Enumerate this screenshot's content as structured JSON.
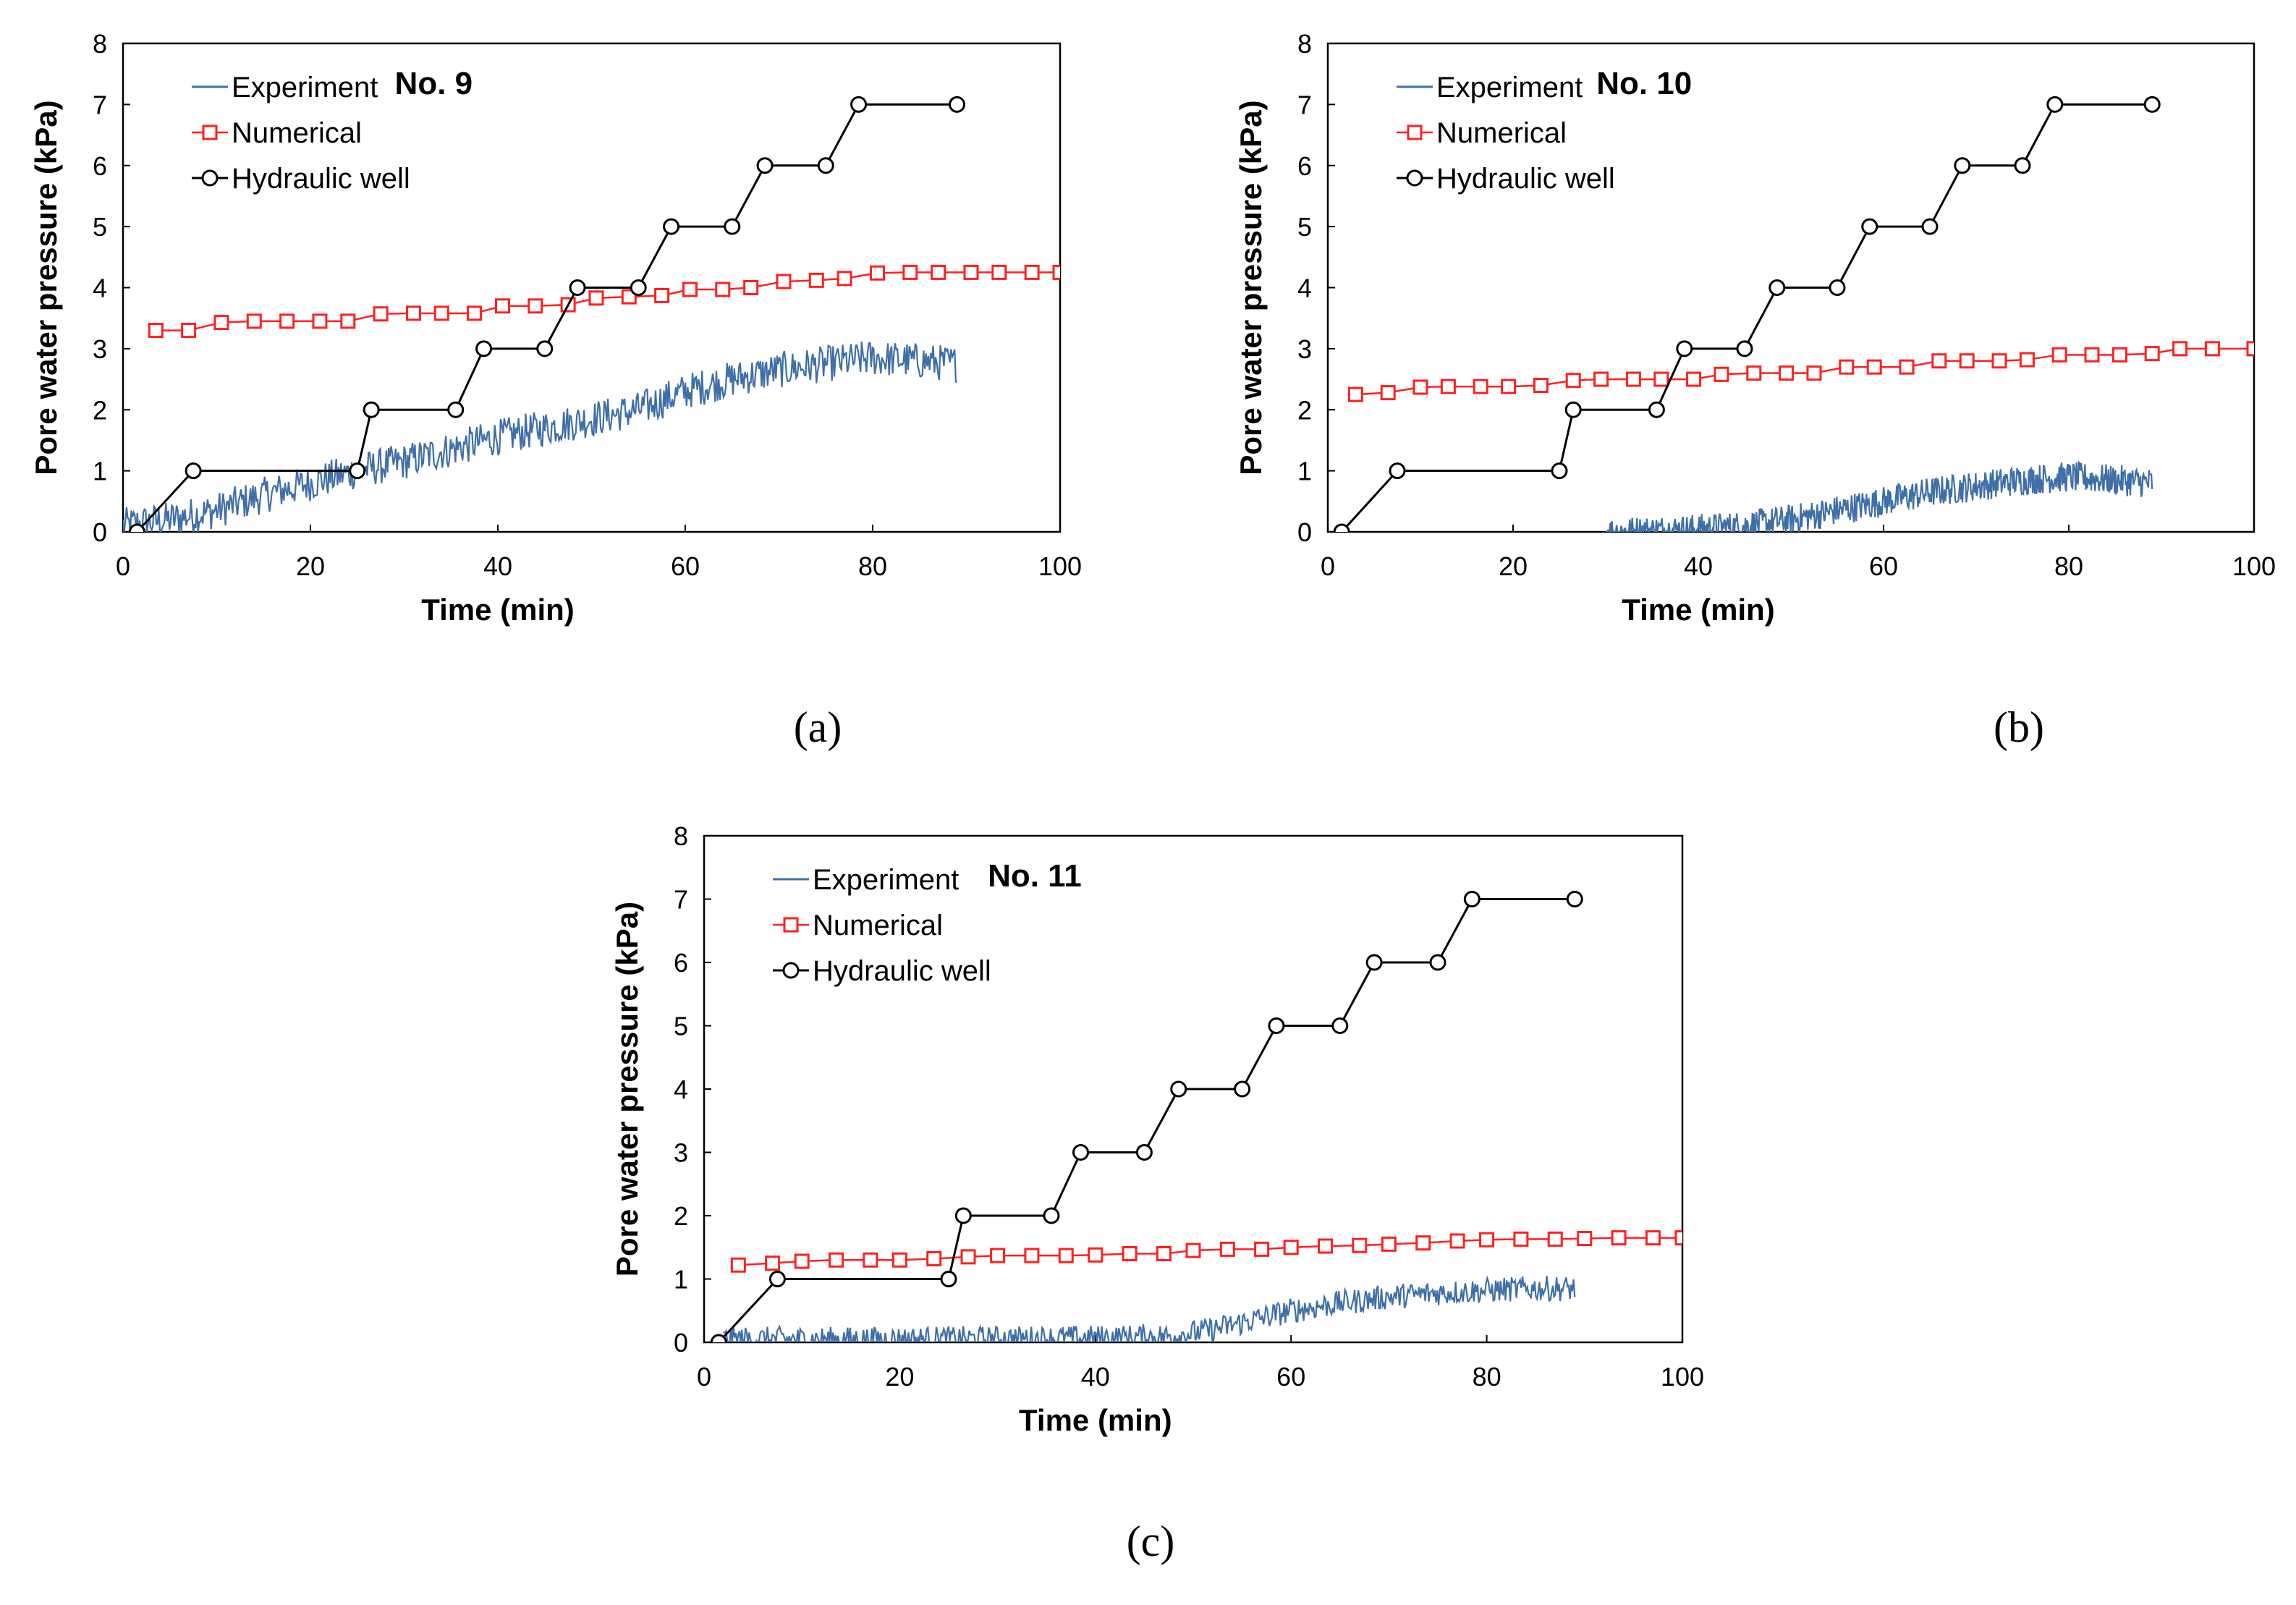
{
  "chart_data": [
    {
      "type": "line",
      "panel_label": "(a)",
      "title": "No. 9",
      "xlabel": "Time (min)",
      "ylabel": "Pore water pressure (kPa)",
      "xlim": [
        0,
        100
      ],
      "ylim": [
        0,
        8
      ],
      "x_ticks": [
        "0",
        "20",
        "40",
        "60",
        "80",
        "100"
      ],
      "y_ticks": [
        "0",
        "1",
        "2",
        "3",
        "4",
        "5",
        "6",
        "7",
        "8"
      ],
      "legend": [
        "Experiment",
        "Numerical",
        "Hydraulic well"
      ],
      "colors": {
        "experiment": "#3f6fa8",
        "numerical": "#ff2020",
        "hydraulic": "#000000"
      },
      "series": [
        {
          "name": "Experiment",
          "style": "noisy-line",
          "x": [
            0,
            5,
            10,
            15,
            20,
            25,
            30,
            35,
            40,
            45,
            50,
            55,
            60,
            65,
            70,
            75,
            80,
            85,
            89
          ],
          "y": [
            0.1,
            0.2,
            0.35,
            0.6,
            0.8,
            1.0,
            1.15,
            1.35,
            1.55,
            1.7,
            1.85,
            2.0,
            2.3,
            2.5,
            2.65,
            2.75,
            2.85,
            2.8,
            2.75
          ],
          "noise": 0.3
        },
        {
          "name": "Numerical",
          "style": "square-markers",
          "x": [
            3.5,
            7,
            10.5,
            14,
            17.5,
            21,
            24,
            27.5,
            31,
            34,
            37.5,
            40.5,
            44,
            47.5,
            50.5,
            54,
            57.5,
            60.5,
            64,
            67,
            70.5,
            74,
            77,
            80.5,
            84,
            87,
            90.5,
            93.5,
            97,
            100
          ],
          "y": [
            3.3,
            3.3,
            3.43,
            3.45,
            3.45,
            3.45,
            3.45,
            3.57,
            3.58,
            3.58,
            3.58,
            3.7,
            3.7,
            3.72,
            3.83,
            3.85,
            3.87,
            3.97,
            3.97,
            4.0,
            4.1,
            4.12,
            4.15,
            4.24,
            4.25,
            4.25,
            4.25,
            4.25,
            4.25,
            4.25
          ]
        },
        {
          "name": "Hydraulic well",
          "style": "circle-markers",
          "x": [
            1.5,
            7.5,
            25,
            26.5,
            35.5,
            38.5,
            45,
            48.5,
            55,
            58.5,
            65,
            68.5,
            75,
            78.5,
            89
          ],
          "y": [
            0,
            1,
            1,
            2,
            2,
            3,
            3,
            4,
            4,
            5,
            5,
            6,
            6,
            7,
            7
          ]
        }
      ]
    },
    {
      "type": "line",
      "panel_label": "(b)",
      "title": "No. 10",
      "xlabel": "Time (min)",
      "ylabel": "Pore water pressure (kPa)",
      "xlim": [
        0,
        100
      ],
      "ylim": [
        0,
        8
      ],
      "x_ticks": [
        "0",
        "20",
        "40",
        "60",
        "80",
        "100"
      ],
      "y_ticks": [
        "0",
        "1",
        "2",
        "3",
        "4",
        "5",
        "6",
        "7",
        "8"
      ],
      "legend": [
        "Experiment",
        "Numerical",
        "Hydraulic well"
      ],
      "colors": {
        "experiment": "#3f6fa8",
        "numerical": "#ff2020",
        "hydraulic": "#000000"
      },
      "series": [
        {
          "name": "Experiment",
          "style": "noisy-line",
          "x": [
            30,
            35,
            40,
            45,
            50,
            55,
            60,
            65,
            70,
            75,
            80,
            85,
            89
          ],
          "y": [
            0,
            0.02,
            0.05,
            0.1,
            0.2,
            0.35,
            0.5,
            0.65,
            0.75,
            0.85,
            0.9,
            0.85,
            0.8
          ],
          "noise": 0.25
        },
        {
          "name": "Numerical",
          "style": "square-markers",
          "x": [
            3,
            6.5,
            10,
            13,
            16.5,
            19.5,
            23,
            26.5,
            29.5,
            33,
            36,
            39.5,
            42.5,
            46,
            49.5,
            52.5,
            56,
            59,
            62.5,
            66,
            69,
            72.5,
            75.5,
            79,
            82.5,
            85.5,
            89,
            92,
            95.5,
            100
          ],
          "y": [
            2.25,
            2.28,
            2.37,
            2.38,
            2.38,
            2.38,
            2.4,
            2.48,
            2.5,
            2.5,
            2.5,
            2.5,
            2.58,
            2.6,
            2.6,
            2.6,
            2.7,
            2.7,
            2.7,
            2.8,
            2.8,
            2.8,
            2.82,
            2.9,
            2.9,
            2.9,
            2.92,
            3.0,
            3.0,
            3.0
          ]
        },
        {
          "name": "Hydraulic well",
          "style": "circle-markers",
          "x": [
            1.5,
            7.5,
            25,
            26.5,
            35.5,
            38.5,
            45,
            48.5,
            55,
            58.5,
            65,
            68.5,
            75,
            78.5,
            89
          ],
          "y": [
            0,
            1,
            1,
            2,
            2,
            3,
            3,
            4,
            4,
            5,
            5,
            6,
            6,
            7,
            7
          ]
        }
      ]
    },
    {
      "type": "line",
      "panel_label": "(c)",
      "title": "No. 11",
      "xlabel": "Time (min)",
      "ylabel": "Pore water pressure (kPa)",
      "xlim": [
        0,
        100
      ],
      "ylim": [
        0,
        8
      ],
      "x_ticks": [
        "0",
        "20",
        "40",
        "60",
        "80",
        "100"
      ],
      "y_ticks": [
        "0",
        "1",
        "2",
        "3",
        "4",
        "5",
        "6",
        "7",
        "8"
      ],
      "legend": [
        "Experiment",
        "Numerical",
        "Hydraulic well"
      ],
      "colors": {
        "experiment": "#3f6fa8",
        "numerical": "#ff2020",
        "hydraulic": "#000000"
      },
      "series": [
        {
          "name": "Experiment",
          "style": "noisy-line",
          "x": [
            2,
            10,
            20,
            30,
            40,
            48,
            52,
            56,
            60,
            65,
            70,
            75,
            80,
            85,
            89
          ],
          "y": [
            0.05,
            0.05,
            0.05,
            0.06,
            0.07,
            0.1,
            0.2,
            0.35,
            0.5,
            0.62,
            0.72,
            0.78,
            0.82,
            0.85,
            0.85
          ],
          "noise": 0.2
        },
        {
          "name": "Numerical",
          "style": "square-markers",
          "x": [
            3.5,
            7,
            10,
            13.5,
            17,
            20,
            23.5,
            27,
            30,
            33.5,
            37,
            40,
            43.5,
            47,
            50,
            53.5,
            57,
            60,
            63.5,
            67,
            70,
            73.5,
            77,
            80,
            83.5,
            87,
            90,
            93.5,
            97,
            100
          ],
          "y": [
            1.22,
            1.25,
            1.28,
            1.3,
            1.3,
            1.3,
            1.32,
            1.35,
            1.37,
            1.37,
            1.37,
            1.38,
            1.4,
            1.4,
            1.45,
            1.47,
            1.47,
            1.5,
            1.52,
            1.53,
            1.55,
            1.57,
            1.6,
            1.62,
            1.63,
            1.63,
            1.64,
            1.65,
            1.65,
            1.65
          ]
        },
        {
          "name": "Hydraulic well",
          "style": "circle-markers",
          "x": [
            1.5,
            7.5,
            25,
            26.5,
            35.5,
            38.5,
            45,
            48.5,
            55,
            58.5,
            65,
            68.5,
            75,
            78.5,
            89
          ],
          "y": [
            0,
            1,
            1,
            2,
            2,
            3,
            3,
            4,
            4,
            5,
            5,
            6,
            6,
            7,
            7
          ]
        }
      ]
    }
  ]
}
